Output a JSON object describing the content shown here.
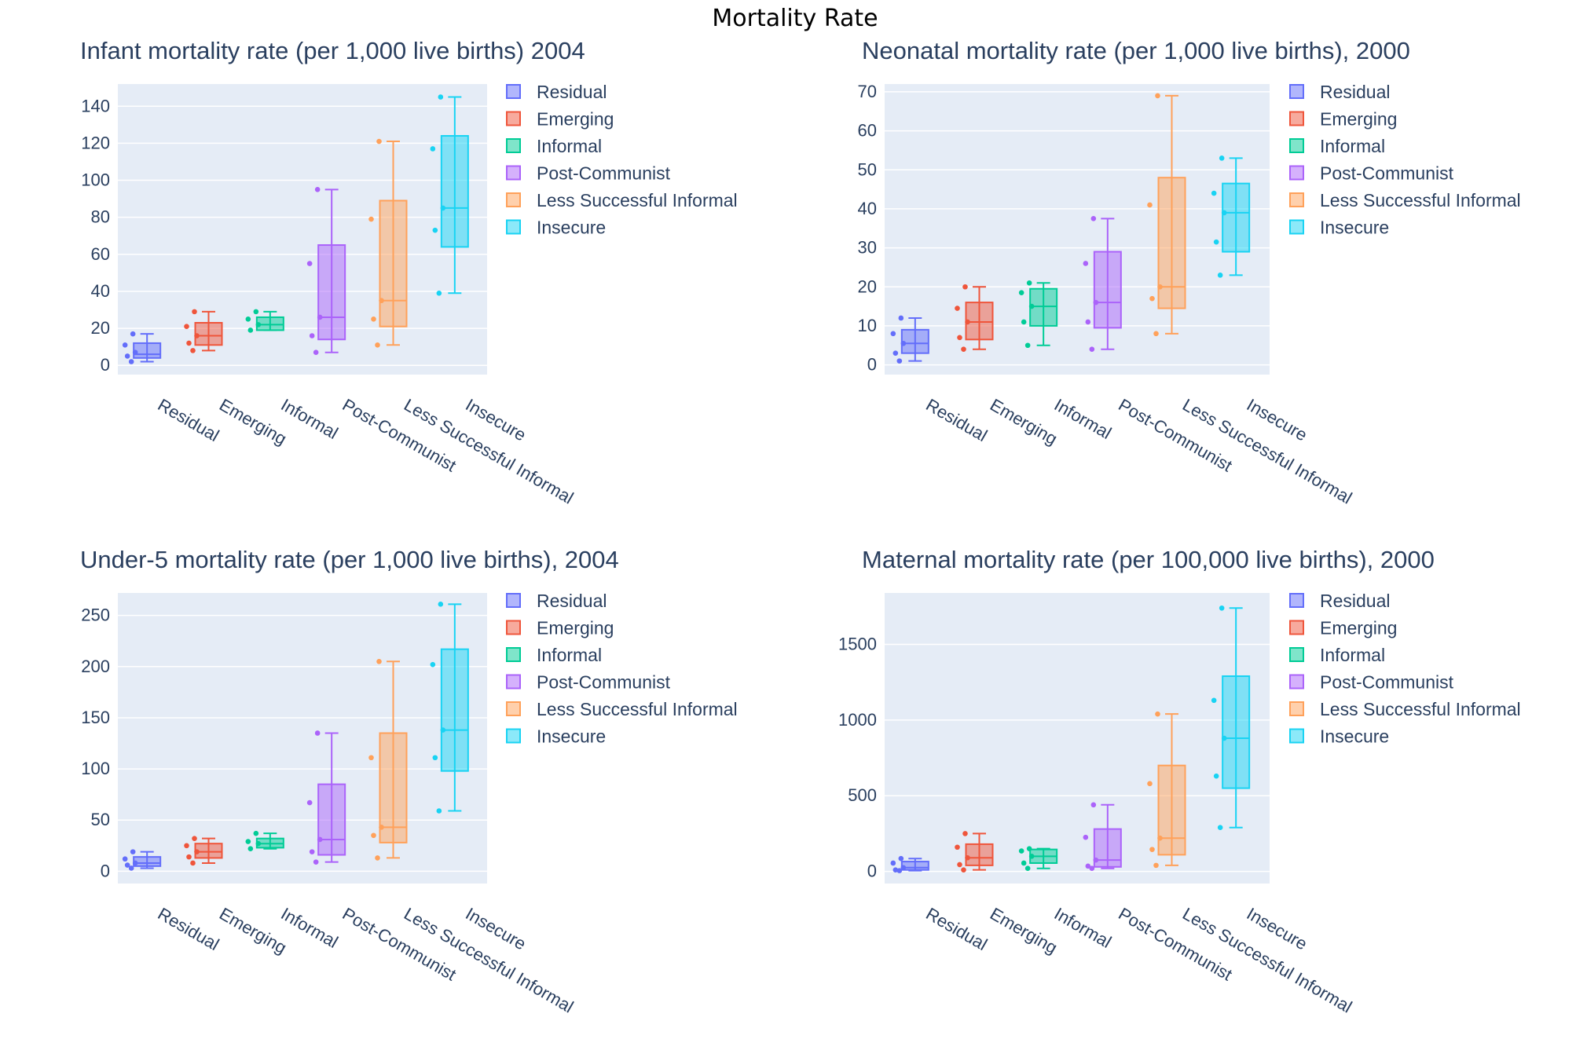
{
  "figure_title": "Mortality Rate",
  "colors": {
    "Residual": "#636efa",
    "Emerging": "#ef553b",
    "Informal": "#00cc96",
    "Post-Communist": "#ab63fa",
    "Less Successful Informal": "#ffa15a",
    "Insecure": "#19d3f3",
    "plot_bg": "#e5ecf6",
    "grid": "#ffffff",
    "text": "#2a3f5f"
  },
  "chart_data": [
    {
      "type": "box",
      "title": "Infant mortality rate (per 1,000 live births) 2004",
      "xlabel": "",
      "ylabel": "",
      "categories": [
        "Residual",
        "Emerging",
        "Informal",
        "Post-Communist",
        "Less Successful Informal",
        "Insecure"
      ],
      "legend": [
        "Residual",
        "Emerging",
        "Informal",
        "Post-Communist",
        "Less Successful Informal",
        "Insecure"
      ],
      "ylim": [
        -5,
        152
      ],
      "yticks": [
        0,
        20,
        40,
        60,
        80,
        100,
        120,
        140
      ],
      "series": [
        {
          "name": "Residual",
          "min": 2,
          "q1": 4,
          "median": 6,
          "q3": 12,
          "max": 17,
          "points": [
            17,
            11,
            7,
            5,
            2
          ]
        },
        {
          "name": "Emerging",
          "min": 8,
          "q1": 11,
          "median": 16,
          "q3": 23,
          "max": 29,
          "points": [
            29,
            21,
            16,
            12,
            8
          ]
        },
        {
          "name": "Informal",
          "min": 19,
          "q1": 19,
          "median": 22,
          "q3": 26,
          "max": 29,
          "points": [
            29,
            25,
            22,
            19
          ]
        },
        {
          "name": "Post-Communist",
          "min": 7,
          "q1": 14,
          "median": 26,
          "q3": 65,
          "max": 95,
          "points": [
            95,
            55,
            26,
            16,
            7
          ]
        },
        {
          "name": "Less Successful Informal",
          "min": 11,
          "q1": 21,
          "median": 35,
          "q3": 89,
          "max": 121,
          "points": [
            121,
            79,
            35,
            25,
            11
          ]
        },
        {
          "name": "Insecure",
          "min": 39,
          "q1": 64,
          "median": 85,
          "q3": 124,
          "max": 145,
          "points": [
            145,
            117,
            85,
            73,
            39
          ]
        }
      ]
    },
    {
      "type": "box",
      "title": "Neonatal mortality rate (per 1,000 live births), 2000",
      "xlabel": "",
      "ylabel": "",
      "categories": [
        "Residual",
        "Emerging",
        "Informal",
        "Post-Communist",
        "Less Successful Informal",
        "Insecure"
      ],
      "legend": [
        "Residual",
        "Emerging",
        "Informal",
        "Post-Communist",
        "Less Successful Informal",
        "Insecure"
      ],
      "ylim": [
        -2.5,
        72
      ],
      "yticks": [
        0,
        10,
        20,
        30,
        40,
        50,
        60,
        70
      ],
      "series": [
        {
          "name": "Residual",
          "min": 1,
          "q1": 3,
          "median": 5.5,
          "q3": 9,
          "max": 12,
          "points": [
            12,
            8,
            5.5,
            3,
            1
          ]
        },
        {
          "name": "Emerging",
          "min": 4,
          "q1": 6.5,
          "median": 11,
          "q3": 16,
          "max": 20,
          "points": [
            20,
            14.5,
            11,
            7,
            4
          ]
        },
        {
          "name": "Informal",
          "min": 5,
          "q1": 10,
          "median": 15,
          "q3": 19.5,
          "max": 21,
          "points": [
            21,
            18.5,
            15,
            11,
            5
          ]
        },
        {
          "name": "Post-Communist",
          "min": 4,
          "q1": 9.5,
          "median": 16,
          "q3": 29,
          "max": 37.5,
          "points": [
            37.5,
            26,
            16,
            11,
            4
          ]
        },
        {
          "name": "Less Successful Informal",
          "min": 8,
          "q1": 14.5,
          "median": 20,
          "q3": 48,
          "max": 69,
          "points": [
            69,
            41,
            20,
            17,
            8
          ]
        },
        {
          "name": "Insecure",
          "min": 23,
          "q1": 29,
          "median": 39,
          "q3": 46.5,
          "max": 53,
          "points": [
            53,
            44,
            39,
            31.5,
            23
          ]
        }
      ]
    },
    {
      "type": "box",
      "title": "Under-5 mortality rate (per 1,000 live births), 2004",
      "xlabel": "",
      "ylabel": "",
      "categories": [
        "Residual",
        "Emerging",
        "Informal",
        "Post-Communist",
        "Less Successful Informal",
        "Insecure"
      ],
      "legend": [
        "Residual",
        "Emerging",
        "Informal",
        "Post-Communist",
        "Less Successful Informal",
        "Insecure"
      ],
      "ylim": [
        -12,
        272
      ],
      "yticks": [
        0,
        50,
        100,
        150,
        200,
        250
      ],
      "series": [
        {
          "name": "Residual",
          "min": 3,
          "q1": 5,
          "median": 8,
          "q3": 14,
          "max": 19,
          "points": [
            19,
            12,
            8,
            6,
            3
          ]
        },
        {
          "name": "Emerging",
          "min": 8,
          "q1": 13,
          "median": 19,
          "q3": 27,
          "max": 32,
          "points": [
            32,
            25,
            19,
            14,
            8
          ]
        },
        {
          "name": "Informal",
          "min": 22,
          "q1": 23,
          "median": 27,
          "q3": 32,
          "max": 37,
          "points": [
            37,
            29,
            27,
            22
          ]
        },
        {
          "name": "Post-Communist",
          "min": 9,
          "q1": 16,
          "median": 31,
          "q3": 85,
          "max": 135,
          "points": [
            135,
            67,
            31,
            19,
            9
          ]
        },
        {
          "name": "Less Successful Informal",
          "min": 13,
          "q1": 28,
          "median": 43,
          "q3": 135,
          "max": 205,
          "points": [
            205,
            111,
            43,
            35,
            13
          ]
        },
        {
          "name": "Insecure",
          "min": 59,
          "q1": 98,
          "median": 138,
          "q3": 217,
          "max": 261,
          "points": [
            261,
            202,
            138,
            111,
            59
          ]
        }
      ]
    },
    {
      "type": "box",
      "title": "Maternal mortality rate (per 100,000 live births), 2000",
      "xlabel": "",
      "ylabel": "",
      "categories": [
        "Residual",
        "Emerging",
        "Informal",
        "Post-Communist",
        "Less Successful Informal",
        "Insecure"
      ],
      "legend": [
        "Residual",
        "Emerging",
        "Informal",
        "Post-Communist",
        "Less Successful Informal",
        "Insecure"
      ],
      "ylim": [
        -80,
        1840
      ],
      "yticks": [
        0,
        500,
        1000,
        1500
      ],
      "series": [
        {
          "name": "Residual",
          "min": 5,
          "q1": 10,
          "median": 25,
          "q3": 65,
          "max": 85,
          "points": [
            85,
            55,
            25,
            10,
            5
          ]
        },
        {
          "name": "Emerging",
          "min": 10,
          "q1": 40,
          "median": 90,
          "q3": 180,
          "max": 250,
          "points": [
            250,
            160,
            90,
            45,
            10
          ]
        },
        {
          "name": "Informal",
          "min": 20,
          "q1": 55,
          "median": 100,
          "q3": 145,
          "max": 150,
          "points": [
            150,
            135,
            100,
            55,
            20
          ]
        },
        {
          "name": "Post-Communist",
          "min": 20,
          "q1": 30,
          "median": 75,
          "q3": 280,
          "max": 440,
          "points": [
            440,
            225,
            75,
            35,
            20
          ]
        },
        {
          "name": "Less Successful Informal",
          "min": 40,
          "q1": 110,
          "median": 220,
          "q3": 700,
          "max": 1040,
          "points": [
            1040,
            580,
            220,
            145,
            40
          ]
        },
        {
          "name": "Insecure",
          "min": 290,
          "q1": 550,
          "median": 880,
          "q3": 1290,
          "max": 1740,
          "points": [
            1740,
            1130,
            880,
            630,
            290
          ]
        }
      ]
    }
  ]
}
